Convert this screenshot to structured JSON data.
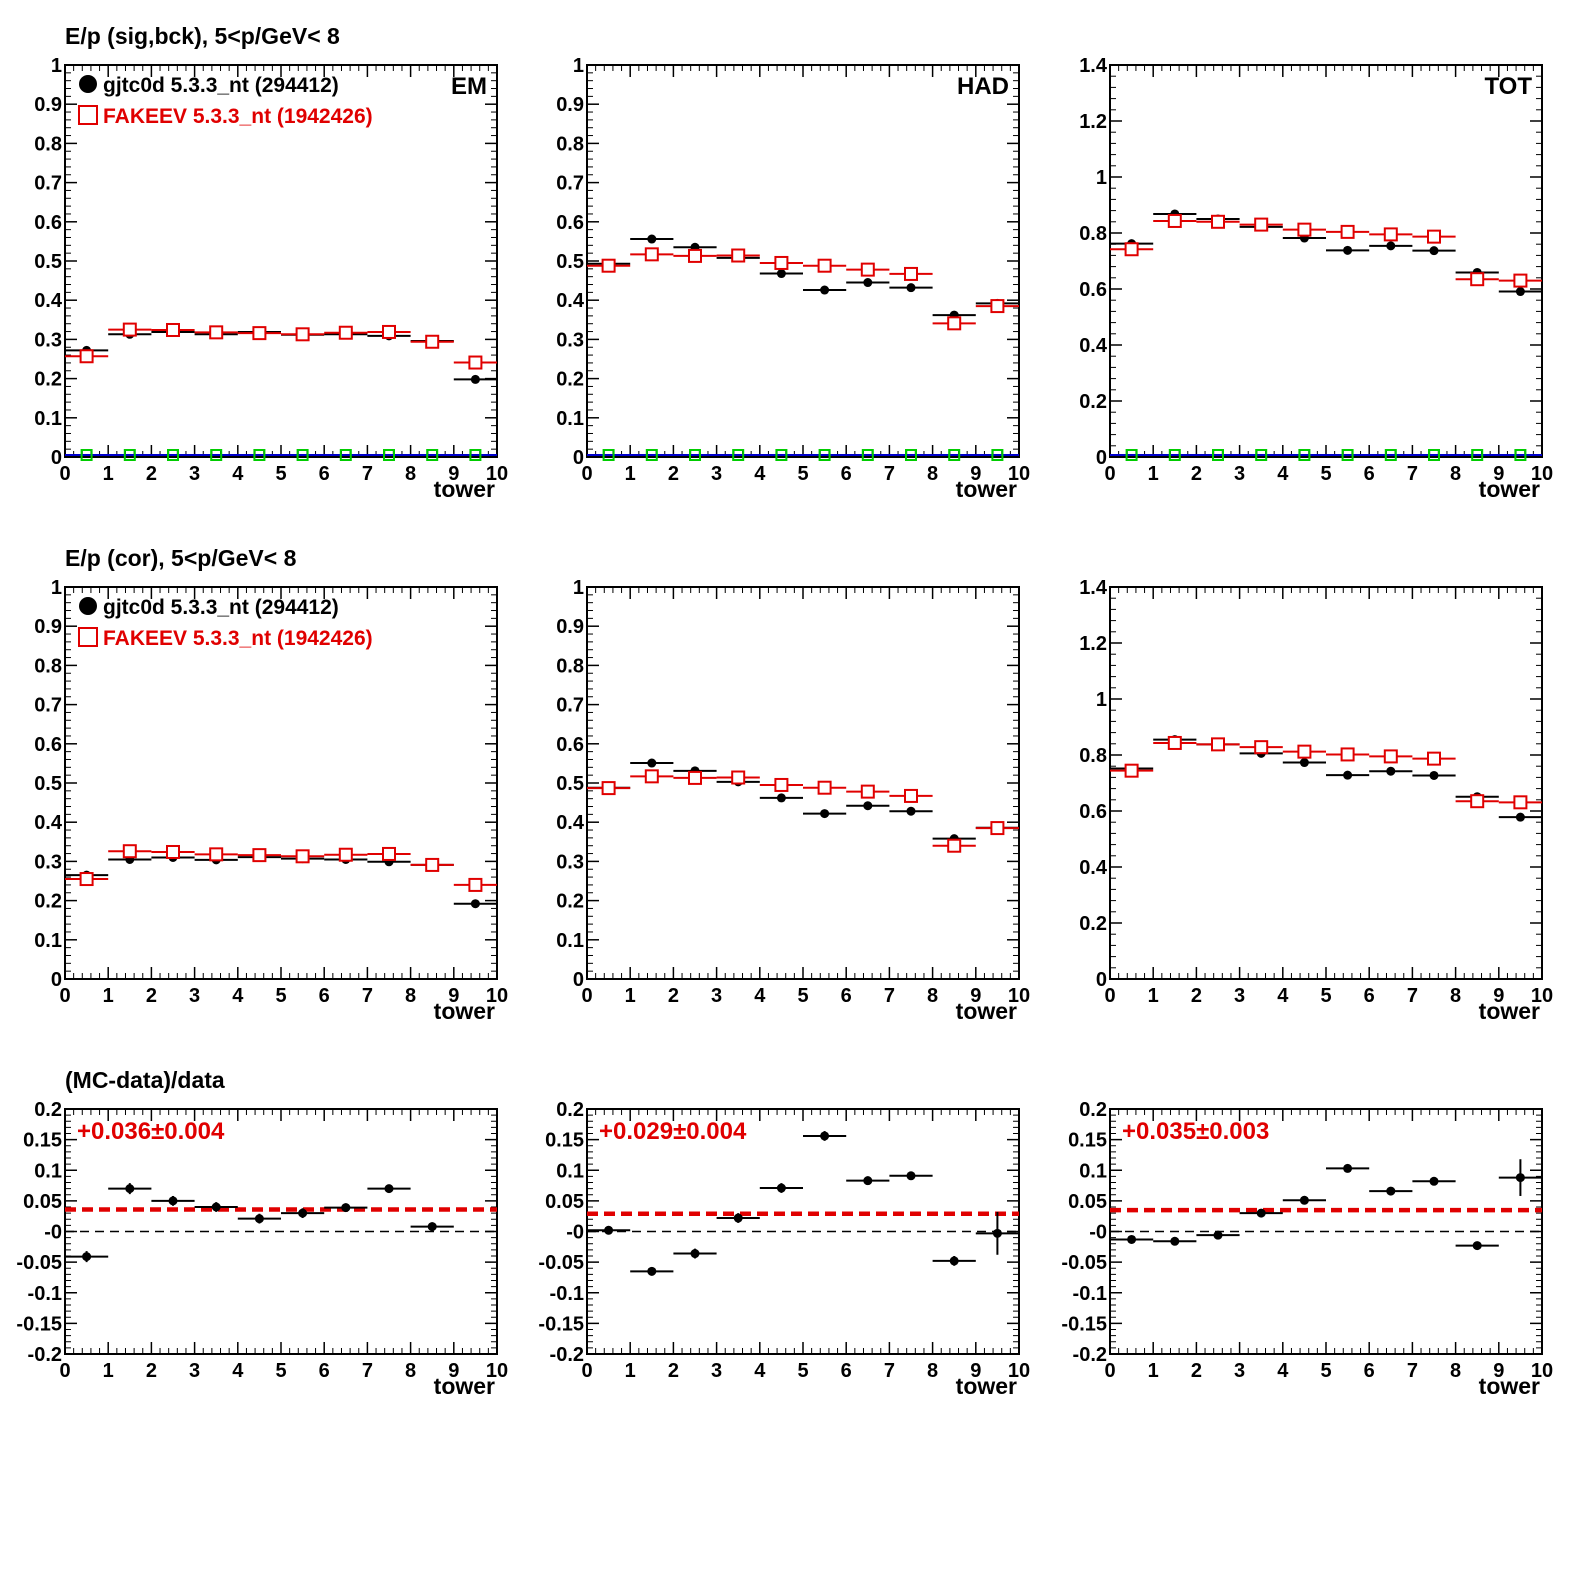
{
  "colors": {
    "data": "#000000",
    "mc": "#e00000",
    "fit": "#e00000",
    "bg_green": "#00cc00",
    "bg_blue": "#0000cc"
  },
  "row_titles": [
    "E/p (sig,bck),  5<p/GeV< 8",
    "E/p (cor),  5<p/GeV< 8",
    "(MC-data)/data"
  ],
  "legend": {
    "data": "gjtc0d 5.3.3_nt (294412)",
    "mc": "FAKEEV 5.3.3_nt (1942426)"
  },
  "corner_labels": [
    "EM",
    "HAD",
    "TOT"
  ],
  "xlabel": "tower",
  "chart_data": [
    {
      "type": "scatter",
      "row": 0,
      "col": 0,
      "corner": "EM",
      "legend": true,
      "xlim": [
        0,
        10
      ],
      "ylim": [
        0,
        1
      ],
      "yticks": [
        "0",
        "0.1",
        "0.2",
        "0.3",
        "0.4",
        "0.5",
        "0.6",
        "0.7",
        "0.8",
        "0.9",
        "1"
      ],
      "ytick_values": [
        0,
        0.1,
        0.2,
        0.3,
        0.4,
        0.5,
        0.6,
        0.7,
        0.8,
        0.9,
        1
      ],
      "x": [
        0.5,
        1.5,
        2.5,
        3.5,
        4.5,
        5.5,
        6.5,
        7.5,
        8.5,
        9.5
      ],
      "series": [
        {
          "values": [
            0.272,
            0.313,
            0.319,
            0.313,
            0.319,
            0.312,
            0.313,
            0.309,
            0.296,
            0.198
          ]
        },
        {
          "values": [
            0.257,
            0.325,
            0.324,
            0.318,
            0.316,
            0.313,
            0.317,
            0.319,
            0.294,
            0.241
          ]
        }
      ],
      "background": true
    },
    {
      "type": "scatter",
      "row": 0,
      "col": 1,
      "corner": "HAD",
      "legend": false,
      "xlim": [
        0,
        10
      ],
      "ylim": [
        0,
        1
      ],
      "yticks": [
        "0",
        "0.1",
        "0.2",
        "0.3",
        "0.4",
        "0.5",
        "0.6",
        "0.7",
        "0.8",
        "0.9",
        "1"
      ],
      "ytick_values": [
        0,
        0.1,
        0.2,
        0.3,
        0.4,
        0.5,
        0.6,
        0.7,
        0.8,
        0.9,
        1
      ],
      "x": [
        0.5,
        1.5,
        2.5,
        3.5,
        4.5,
        5.5,
        6.5,
        7.5,
        8.5,
        9.5
      ],
      "series": [
        {
          "values": [
            0.493,
            0.556,
            0.535,
            0.508,
            0.468,
            0.426,
            0.445,
            0.432,
            0.362,
            0.392
          ]
        },
        {
          "values": [
            0.488,
            0.517,
            0.513,
            0.514,
            0.495,
            0.488,
            0.478,
            0.467,
            0.341,
            0.385
          ]
        }
      ],
      "background": true
    },
    {
      "type": "scatter",
      "row": 0,
      "col": 2,
      "corner": "TOT",
      "legend": false,
      "xlim": [
        0,
        10
      ],
      "ylim": [
        0,
        1.4
      ],
      "yticks": [
        "0",
        "0.2",
        "0.4",
        "0.6",
        "0.8",
        "1",
        "1.2",
        "1.4"
      ],
      "ytick_values": [
        0,
        0.2,
        0.4,
        0.6,
        0.8,
        1.0,
        1.2,
        1.4
      ],
      "x": [
        0.5,
        1.5,
        2.5,
        3.5,
        4.5,
        5.5,
        6.5,
        7.5,
        8.5,
        9.5
      ],
      "series": [
        {
          "values": [
            0.762,
            0.868,
            0.85,
            0.822,
            0.782,
            0.738,
            0.754,
            0.737,
            0.659,
            0.591
          ]
        },
        {
          "values": [
            0.742,
            0.843,
            0.84,
            0.83,
            0.812,
            0.804,
            0.795,
            0.787,
            0.635,
            0.63
          ]
        }
      ],
      "background": true
    },
    {
      "type": "scatter",
      "row": 1,
      "col": 0,
      "legend": true,
      "xlim": [
        0,
        10
      ],
      "ylim": [
        0,
        1
      ],
      "yticks": [
        "0",
        "0.1",
        "0.2",
        "0.3",
        "0.4",
        "0.5",
        "0.6",
        "0.7",
        "0.8",
        "0.9",
        "1"
      ],
      "ytick_values": [
        0,
        0.1,
        0.2,
        0.3,
        0.4,
        0.5,
        0.6,
        0.7,
        0.8,
        0.9,
        1
      ],
      "x": [
        0.5,
        1.5,
        2.5,
        3.5,
        4.5,
        5.5,
        6.5,
        7.5,
        8.5,
        9.5
      ],
      "series": [
        {
          "values": [
            0.265,
            0.305,
            0.31,
            0.304,
            0.311,
            0.307,
            0.305,
            0.299,
            0.291,
            0.192
          ]
        },
        {
          "values": [
            0.255,
            0.326,
            0.324,
            0.318,
            0.316,
            0.313,
            0.317,
            0.319,
            0.291,
            0.24
          ]
        }
      ],
      "background": false
    },
    {
      "type": "scatter",
      "row": 1,
      "col": 1,
      "legend": false,
      "xlim": [
        0,
        10
      ],
      "ylim": [
        0,
        1
      ],
      "yticks": [
        "0",
        "0.1",
        "0.2",
        "0.3",
        "0.4",
        "0.5",
        "0.6",
        "0.7",
        "0.8",
        "0.9",
        "1"
      ],
      "ytick_values": [
        0,
        0.1,
        0.2,
        0.3,
        0.4,
        0.5,
        0.6,
        0.7,
        0.8,
        0.9,
        1
      ],
      "x": [
        0.5,
        1.5,
        2.5,
        3.5,
        4.5,
        5.5,
        6.5,
        7.5,
        8.5,
        9.5
      ],
      "series": [
        {
          "values": [
            0.488,
            0.551,
            0.531,
            0.503,
            0.462,
            0.422,
            0.442,
            0.428,
            0.358,
            0.386
          ]
        },
        {
          "values": [
            0.487,
            0.517,
            0.513,
            0.514,
            0.495,
            0.488,
            0.478,
            0.467,
            0.34,
            0.385
          ]
        }
      ],
      "background": false
    },
    {
      "type": "scatter",
      "row": 1,
      "col": 2,
      "legend": false,
      "xlim": [
        0,
        10
      ],
      "ylim": [
        0,
        1.4
      ],
      "yticks": [
        "0",
        "0.2",
        "0.4",
        "0.6",
        "0.8",
        "1",
        "1.2",
        "1.4"
      ],
      "ytick_values": [
        0,
        0.2,
        0.4,
        0.6,
        0.8,
        1.0,
        1.2,
        1.4
      ],
      "x": [
        0.5,
        1.5,
        2.5,
        3.5,
        4.5,
        5.5,
        6.5,
        7.5,
        8.5,
        9.5
      ],
      "series": [
        {
          "values": [
            0.752,
            0.855,
            0.838,
            0.806,
            0.773,
            0.728,
            0.742,
            0.727,
            0.651,
            0.578
          ]
        },
        {
          "values": [
            0.744,
            0.843,
            0.838,
            0.828,
            0.812,
            0.802,
            0.795,
            0.787,
            0.635,
            0.631
          ]
        }
      ],
      "background": false
    },
    {
      "type": "scatter",
      "row": 2,
      "col": 0,
      "legend": false,
      "xlim": [
        0,
        10
      ],
      "ylim": [
        -0.2,
        0.2
      ],
      "yticks": [
        "-0.2",
        "-0.15",
        "-0.1",
        "-0.05",
        "-0",
        "0.05",
        "0.1",
        "0.15",
        "0.2"
      ],
      "ytick_values": [
        -0.2,
        -0.15,
        -0.1,
        -0.05,
        0,
        0.05,
        0.1,
        0.15,
        0.2
      ],
      "x": [
        0.5,
        1.5,
        2.5,
        3.5,
        4.5,
        5.5,
        6.5,
        7.5,
        8.5,
        9.5
      ],
      "values": [
        -0.041,
        0.07,
        0.05,
        0.04,
        0.021,
        0.03,
        0.039,
        0.07,
        0.008,
        null
      ],
      "errors": [
        0.009,
        0.009,
        0.008,
        0.008,
        0.008,
        0.008,
        0.007,
        0.006,
        0.007,
        null
      ],
      "fit": {
        "value": 0.036,
        "label": "+0.036±0.004"
      },
      "zero_line": true
    },
    {
      "type": "scatter",
      "row": 2,
      "col": 1,
      "legend": false,
      "xlim": [
        0,
        10
      ],
      "ylim": [
        -0.2,
        0.2
      ],
      "yticks": [
        "-0.2",
        "-0.15",
        "-0.1",
        "-0.05",
        "-0",
        "0.05",
        "0.1",
        "0.15",
        "0.2"
      ],
      "ytick_values": [
        -0.2,
        -0.15,
        -0.1,
        -0.05,
        0,
        0.05,
        0.1,
        0.15,
        0.2
      ],
      "x": [
        0.5,
        1.5,
        2.5,
        3.5,
        4.5,
        5.5,
        6.5,
        7.5,
        8.5,
        9.5
      ],
      "values": [
        0.002,
        -0.065,
        -0.036,
        0.022,
        0.071,
        0.156,
        0.083,
        0.091,
        -0.048,
        -0.003
      ],
      "errors": [
        0.007,
        0.007,
        0.008,
        0.008,
        0.008,
        0.008,
        0.007,
        0.006,
        0.008,
        0.035
      ],
      "fit": {
        "value": 0.029,
        "label": "+0.029±0.004"
      },
      "zero_line": true
    },
    {
      "type": "scatter",
      "row": 2,
      "col": 2,
      "legend": false,
      "xlim": [
        0,
        10
      ],
      "ylim": [
        -0.2,
        0.2
      ],
      "yticks": [
        "-0.2",
        "-0.15",
        "-0.1",
        "-0.05",
        "-0",
        "0.05",
        "0.1",
        "0.15",
        "0.2"
      ],
      "ytick_values": [
        -0.2,
        -0.15,
        -0.1,
        -0.05,
        0,
        0.05,
        0.1,
        0.15,
        0.2
      ],
      "x": [
        0.5,
        1.5,
        2.5,
        3.5,
        4.5,
        5.5,
        6.5,
        7.5,
        8.5,
        9.5
      ],
      "values": [
        -0.013,
        -0.016,
        -0.006,
        0.03,
        0.051,
        0.103,
        0.066,
        0.082,
        -0.023,
        0.088
      ],
      "errors": [
        0.006,
        0.006,
        0.006,
        0.006,
        0.006,
        0.006,
        0.006,
        0.006,
        0.006,
        0.03
      ],
      "fit": {
        "value": 0.035,
        "label": "+0.035±0.003"
      },
      "zero_line": true
    }
  ]
}
